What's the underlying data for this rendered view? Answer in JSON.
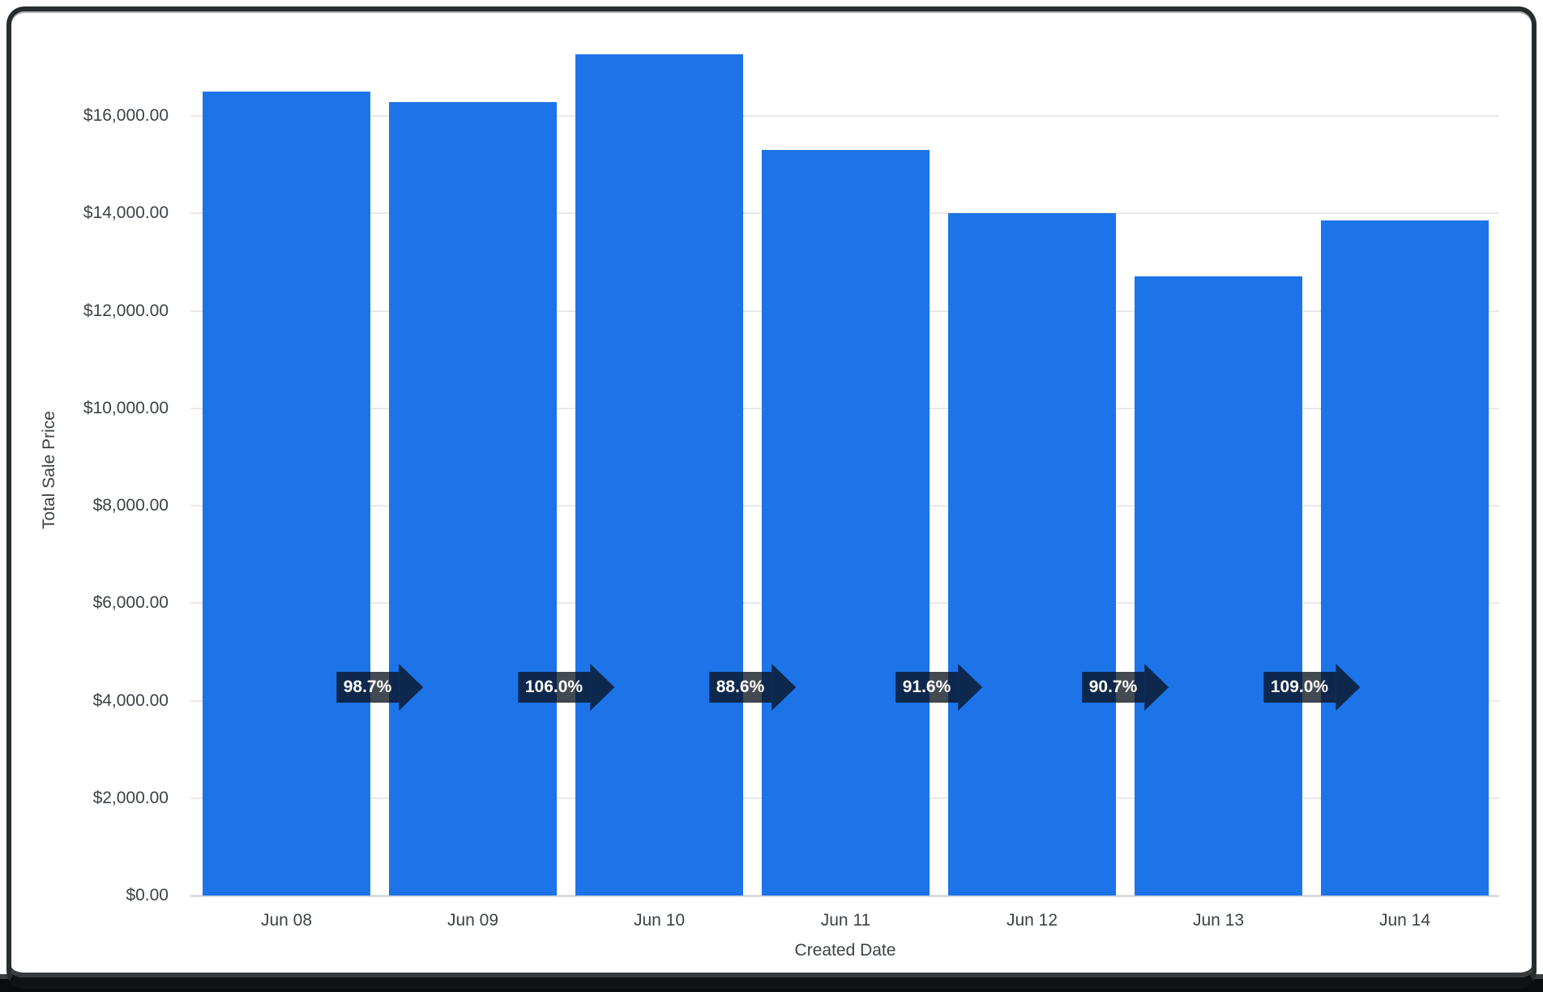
{
  "chart_data": {
    "type": "bar",
    "title": "",
    "xlabel": "Created Date",
    "ylabel": "Total Sale Price",
    "categories": [
      "Jun 08",
      "Jun 09",
      "Jun 10",
      "Jun 11",
      "Jun 12",
      "Jun 13",
      "Jun 14"
    ],
    "series": [
      {
        "name": "Total Sale Price",
        "values": [
          16500,
          16290,
          17270,
          15300,
          14010,
          12710,
          13850
        ]
      }
    ],
    "percent_of_previous": [
      "98.7%",
      "106.0%",
      "88.6%",
      "91.6%",
      "90.7%",
      "109.0%"
    ],
    "y_ticks": [
      {
        "value": 0,
        "label": "$0.00"
      },
      {
        "value": 2000,
        "label": "$2,000.00"
      },
      {
        "value": 4000,
        "label": "$4,000.00"
      },
      {
        "value": 6000,
        "label": "$6,000.00"
      },
      {
        "value": 8000,
        "label": "$8,000.00"
      },
      {
        "value": 10000,
        "label": "$10,000.00"
      },
      {
        "value": 12000,
        "label": "$12,000.00"
      },
      {
        "value": 14000,
        "label": "$14,000.00"
      },
      {
        "value": 16000,
        "label": "$16,000.00"
      }
    ],
    "ylim": [
      0,
      17800
    ],
    "grid": "horizontal",
    "legend": "none",
    "colors": {
      "bar": "#1d73e8",
      "axis_text": "#3c4247",
      "gridline": "#e8e8e8",
      "baseline": "#d9dcde",
      "badge_bg": "rgba(9,17,27,0.76)",
      "badge_text": "#ffffff"
    }
  }
}
